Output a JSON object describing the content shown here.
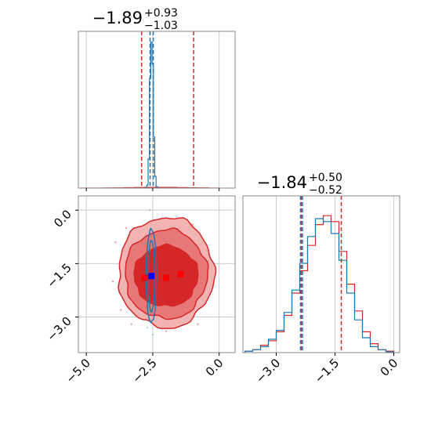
{
  "figure": {
    "colors": {
      "red": "#d62728",
      "blue": "#1f77b4",
      "red_fill_light": "#f2b3b3",
      "red_fill_mid": "#e87878",
      "marker_red": "#ff0000",
      "marker_blue": "#0000ff",
      "grid": "#cccccc",
      "frame": "#888888"
    }
  },
  "chart_data": [
    {
      "type": "histogram",
      "panel": "top-left marginal (x parameter)",
      "title": "−1.89",
      "title_sup": "+0.93",
      "title_sub": "−1.03",
      "xlim": [
        -5.3,
        0.6
      ],
      "red_quantiles": [
        -2.92,
        -0.96
      ],
      "blue_quantiles": [
        -2.6,
        -2.48
      ],
      "red_series": {
        "x": [
          -5.0,
          -4.6,
          -4.2,
          -3.8,
          -3.4,
          -3.0,
          -2.6,
          -2.2,
          -1.8,
          -1.4,
          -1.0,
          -0.6,
          -0.2,
          0.2
        ],
        "y": [
          0.005,
          0.01,
          0.02,
          0.03,
          0.045,
          0.06,
          0.07,
          0.075,
          0.07,
          0.055,
          0.04,
          0.025,
          0.012,
          0.004
        ]
      },
      "blue_series": {
        "x": [
          -2.75,
          -2.7,
          -2.65,
          -2.6,
          -2.55,
          -2.5,
          -2.45,
          -2.4,
          -2.35,
          -2.3
        ],
        "y": [
          0.0,
          0.02,
          0.2,
          0.75,
          1.0,
          0.85,
          0.35,
          0.08,
          0.01,
          0.0
        ]
      }
    },
    {
      "type": "scatter",
      "panel": "bottom-left 2D contour (x vs y)",
      "xlim": [
        -5.3,
        0.6
      ],
      "ylim": [
        -4.0,
        0.4
      ],
      "xticks": [
        -5.0,
        -2.5,
        0.0
      ],
      "xtick_labels": [
        "−5.0",
        "−2.5",
        "0.0"
      ],
      "yticks": [
        0.0,
        -1.5,
        -3.0
      ],
      "ytick_labels": [
        "0.0",
        "−1.5",
        "−3.0"
      ],
      "red_markers": [
        {
          "x": -2.8,
          "y": -1.9
        },
        {
          "x": -2.0,
          "y": -1.9
        },
        {
          "x": -1.45,
          "y": -1.8
        }
      ],
      "blue_markers": [
        {
          "x": -2.55,
          "y": -1.85
        }
      ],
      "red_contour_levels": [
        {
          "level": "outer",
          "cx": -2.0,
          "cy": -1.75,
          "rx": 1.8,
          "ry": 1.55
        },
        {
          "level": "middle",
          "cx": -2.0,
          "cy": -1.8,
          "rx": 1.55,
          "ry": 1.25
        },
        {
          "level": "inner",
          "cx": -2.0,
          "cy": -1.85,
          "rx": 1.2,
          "ry": 0.85
        }
      ],
      "blue_contour_levels": [
        {
          "level": "outer",
          "cx": -2.55,
          "cy": -1.85,
          "rx": 0.2,
          "ry": 1.3
        },
        {
          "level": "inner",
          "cx": -2.55,
          "cy": -1.85,
          "rx": 0.12,
          "ry": 1.0
        }
      ],
      "red_scatter_points": [
        {
          "x": -3.9,
          "y": -0.9
        },
        {
          "x": -3.7,
          "y": -2.8
        },
        {
          "x": -3.3,
          "y": -3.2
        },
        {
          "x": -0.6,
          "y": -2.6
        },
        {
          "x": -0.4,
          "y": -1.2
        },
        {
          "x": -4.0,
          "y": -2.0
        },
        {
          "x": -3.5,
          "y": -0.5
        },
        {
          "x": -1.0,
          "y": -0.4
        },
        {
          "x": -0.8,
          "y": -3.2
        },
        {
          "x": -2.0,
          "y": -3.4
        },
        {
          "x": -2.5,
          "y": -0.3
        },
        {
          "x": -3.2,
          "y": -1.3
        }
      ],
      "blue_scatter_points": [
        {
          "x": -2.6,
          "y": 0.0
        },
        {
          "x": -2.5,
          "y": -3.5
        },
        {
          "x": -2.4,
          "y": -0.3
        },
        {
          "x": -2.7,
          "y": -3.3
        },
        {
          "x": -1.9,
          "y": -3.2
        },
        {
          "x": -3.3,
          "y": -0.6
        }
      ]
    },
    {
      "type": "histogram",
      "panel": "bottom-right marginal (y parameter)",
      "title": "−1.84",
      "title_sup": "+0.50",
      "title_sub": "−0.52",
      "xlim": [
        -3.85,
        0.15
      ],
      "xticks": [
        -3.0,
        -1.5,
        0.0
      ],
      "xtick_labels": [
        "−3.0",
        "−1.5",
        "0.0"
      ],
      "red_quantiles": [
        -2.36,
        -1.34
      ],
      "blue_quantiles": [
        -2.38,
        -2.33
      ],
      "red_series": {
        "x": [
          -3.7,
          -3.5,
          -3.3,
          -3.1,
          -2.9,
          -2.7,
          -2.5,
          -2.3,
          -2.1,
          -1.9,
          -1.7,
          -1.5,
          -1.3,
          -1.1,
          -0.9,
          -0.7,
          -0.5,
          -0.3,
          -0.1
        ],
        "y": [
          0.01,
          0.02,
          0.05,
          0.08,
          0.14,
          0.25,
          0.4,
          0.55,
          0.72,
          0.86,
          0.92,
          0.88,
          0.68,
          0.46,
          0.28,
          0.14,
          0.06,
          0.02,
          0.01
        ]
      },
      "blue_series": {
        "x": [
          -3.7,
          -3.5,
          -3.3,
          -3.1,
          -2.9,
          -2.7,
          -2.5,
          -2.3,
          -2.1,
          -1.9,
          -1.7,
          -1.5,
          -1.3,
          -1.1,
          -0.9,
          -0.7,
          -0.5,
          -0.3,
          -0.1
        ],
        "y": [
          0.01,
          0.02,
          0.04,
          0.09,
          0.15,
          0.27,
          0.42,
          0.6,
          0.78,
          0.9,
          0.88,
          0.8,
          0.62,
          0.4,
          0.22,
          0.1,
          0.04,
          0.02,
          0.005
        ]
      }
    }
  ]
}
